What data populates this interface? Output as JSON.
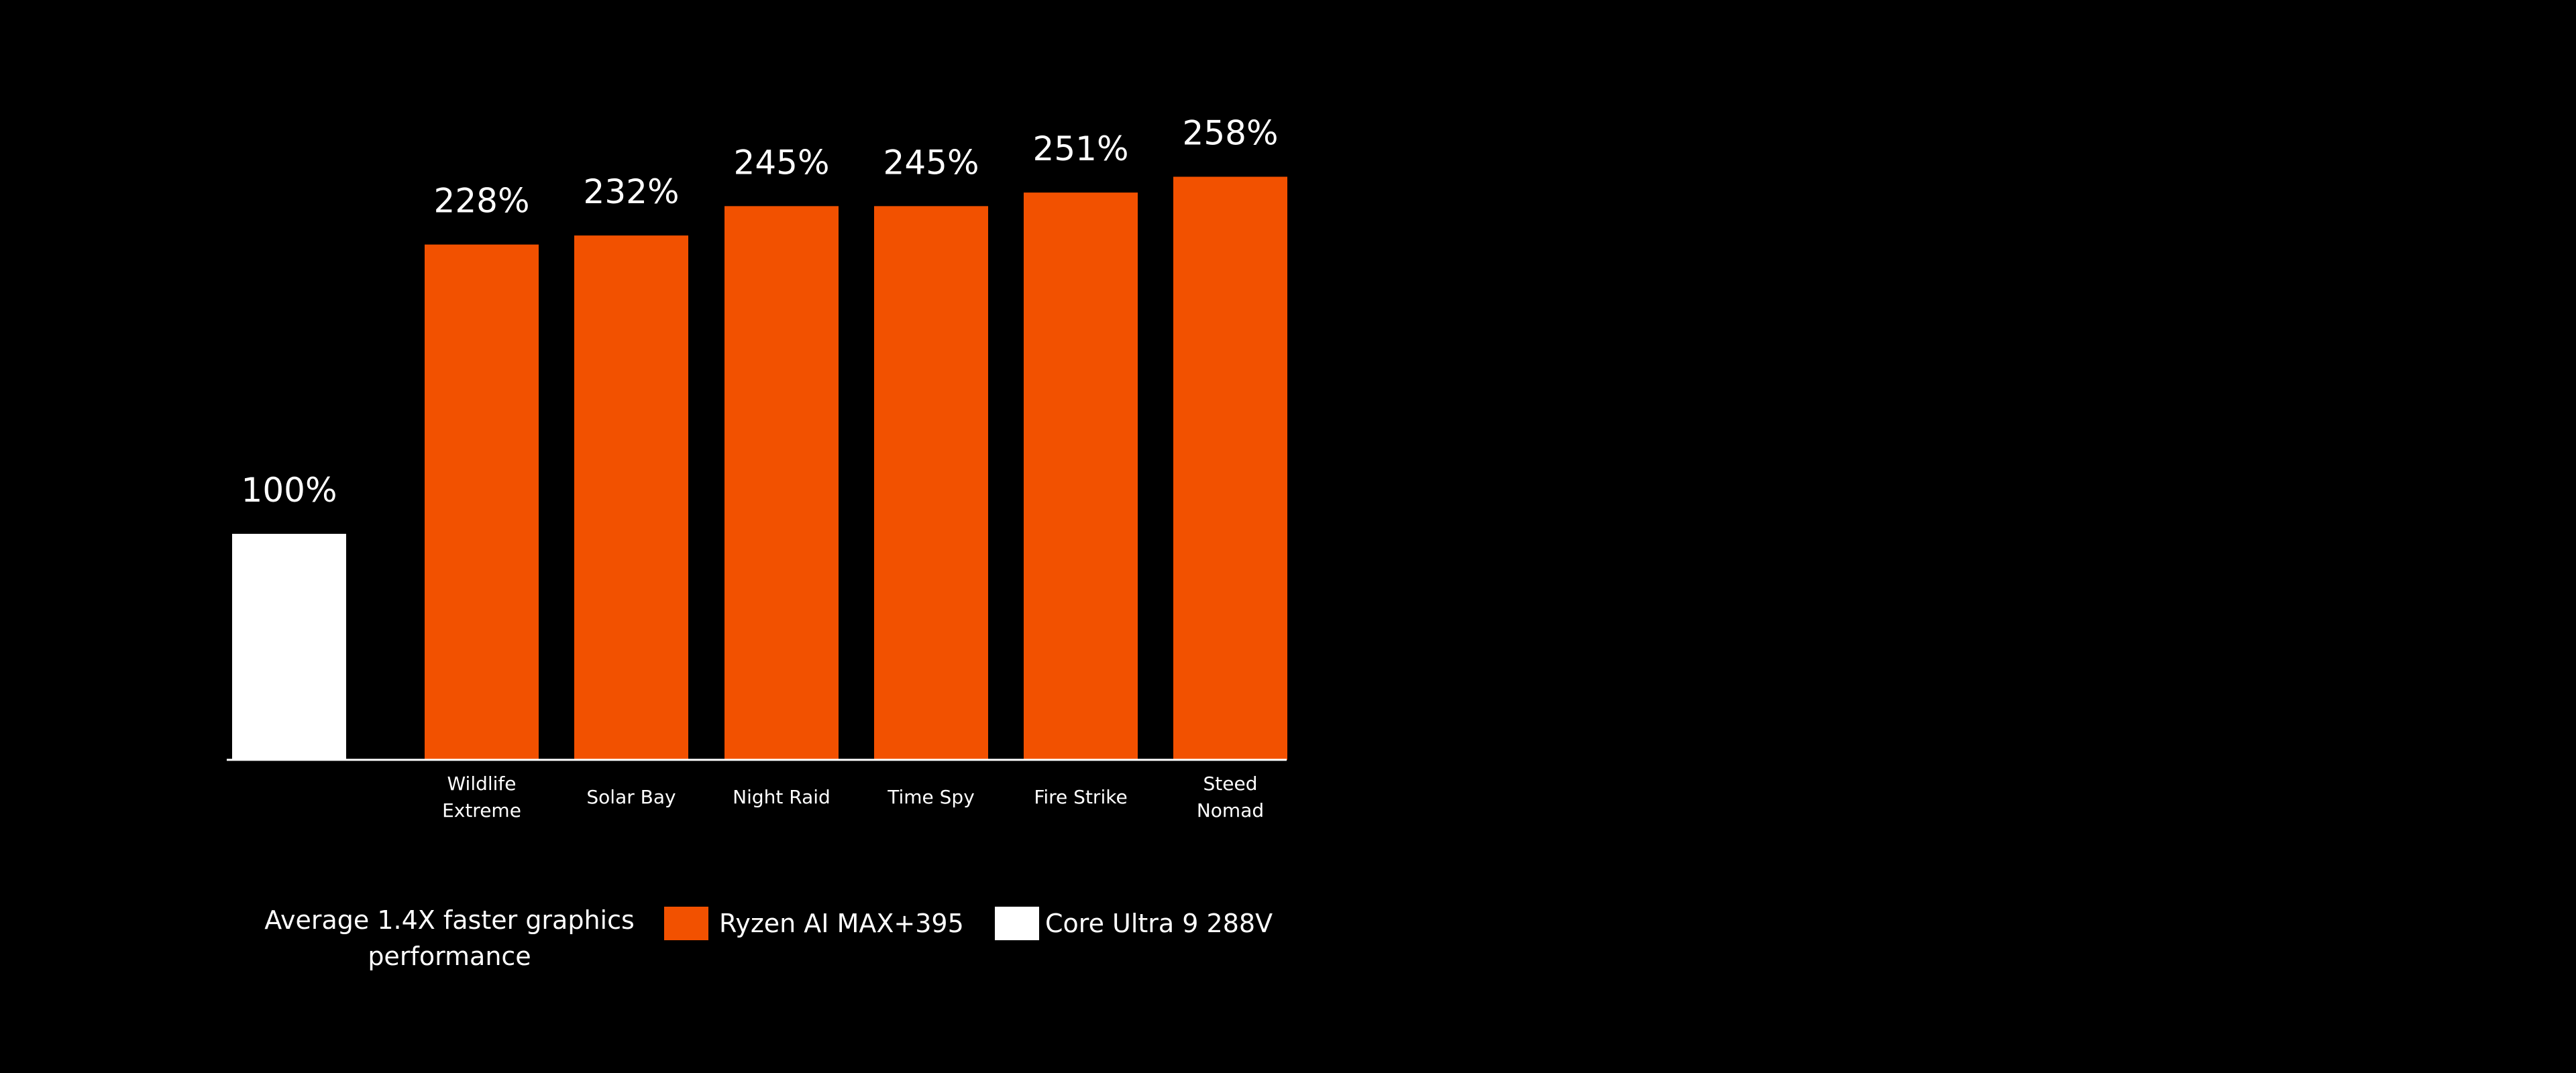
{
  "chart_data": {
    "type": "bar",
    "title": "",
    "xlabel": "",
    "ylabel": "",
    "ylim": [
      0,
      300
    ],
    "grid": false,
    "legend_position": "bottom",
    "value_suffix": "%",
    "series": [
      {
        "name": "Core Ultra 9 288V",
        "color": "#ffffff",
        "categories": [
          ""
        ],
        "values": [
          100
        ],
        "labels": [
          "100%"
        ]
      },
      {
        "name": "Ryzen AI MAX+395",
        "color": "#f25100",
        "categories": [
          "Wildlife Extreme",
          "Solar Bay",
          "Night Raid",
          "Time Spy",
          "Fire Strike",
          "Steed Nomad"
        ],
        "category_lines": [
          [
            "Wildlife",
            "Extreme"
          ],
          [
            "Solar Bay"
          ],
          [
            "Night Raid"
          ],
          [
            "Time Spy"
          ],
          [
            "Fire Strike"
          ],
          [
            "Steed",
            "Nomad"
          ]
        ],
        "values": [
          228,
          232,
          245,
          245,
          251,
          258
        ],
        "labels": [
          "228%",
          "232%",
          "245%",
          "245%",
          "251%",
          "258%"
        ]
      }
    ],
    "legend": [
      {
        "name": "Ryzen AI MAX+395",
        "color": "#f25100"
      },
      {
        "name": "Core Ultra 9 288V",
        "color": "#ffffff"
      }
    ],
    "footnote_lines": [
      "Average 1.4X faster graphics",
      "performance"
    ]
  }
}
